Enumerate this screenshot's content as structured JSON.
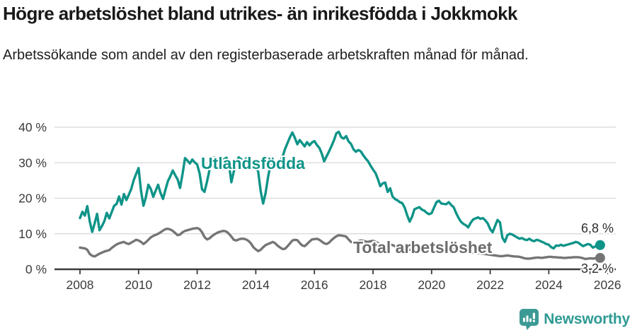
{
  "header": {
    "title": "Högre arbetslöshet bland utrikes- än inrikesfödda i Jokkmokk",
    "subtitle": "Arbetssökande som andel av den registerbaserade arbetskraften månad för månad."
  },
  "chart_data": {
    "type": "line",
    "unit": "%",
    "x_start_year": 2008,
    "x_interval": "monthly",
    "x_ticks": [
      2008,
      2010,
      2012,
      2014,
      2016,
      2018,
      2020,
      2022,
      2024,
      2026
    ],
    "y_ticks": [
      0,
      10,
      20,
      30,
      40
    ],
    "y_tick_suffix": " %",
    "ylim": [
      0,
      42
    ],
    "grid": "horizontal",
    "colors": {
      "utlandsfodda": "#0E9488",
      "total": "#757575",
      "axis": "#3b3b3b",
      "gridline": "#d8d8d8"
    },
    "series": [
      {
        "name": "Utlandsfödda",
        "color": "#0E9488",
        "end_label": "6,8 %",
        "end_value": 6.8,
        "values": [
          14.4,
          16.2,
          15.1,
          17.8,
          13.5,
          10.5,
          12.9,
          15.6,
          11.0,
          12.2,
          13.6,
          15.9,
          14.3,
          16.1,
          17.9,
          18.4,
          20.5,
          18.2,
          21.2,
          19.5,
          21.0,
          22.6,
          25.1,
          26.8,
          28.5,
          22.0,
          17.9,
          20.3,
          23.8,
          22.6,
          20.4,
          22.1,
          23.8,
          21.5,
          19.8,
          22.4,
          24.8,
          26.2,
          27.8,
          26.5,
          25.3,
          22.9,
          26.8,
          31.3,
          30.6,
          29.8,
          30.9,
          30.1,
          29.5,
          27.0,
          22.5,
          21.8,
          24.6,
          27.9,
          30.4,
          31.5,
          30.8,
          31.2,
          30.5,
          31.0,
          31.4,
          29.8,
          24.5,
          27.6,
          30.2,
          31.5,
          31.0,
          30.4,
          31.2,
          29.6,
          28.8,
          29.4,
          29.0,
          27.5,
          22.0,
          18.5,
          21.4,
          25.8,
          29.5,
          31.0,
          30.2,
          29.6,
          30.4,
          31.8,
          33.9,
          35.6,
          37.2,
          38.5,
          37.0,
          35.2,
          36.4,
          35.5,
          34.6,
          35.8,
          34.9,
          35.7,
          36.1,
          35.0,
          34.2,
          32.6,
          30.4,
          31.8,
          33.2,
          34.7,
          36.3,
          38.3,
          38.7,
          37.2,
          36.8,
          37.5,
          36.0,
          35.3,
          33.8,
          33.1,
          33.6,
          33.2,
          32.1,
          31.2,
          30.4,
          29.2,
          28.1,
          27.1,
          25.4,
          23.4,
          24.2,
          24.4,
          21.8,
          22.8,
          20.5,
          19.8,
          19.4,
          18.9,
          18.6,
          17.3,
          15.2,
          13.4,
          14.8,
          16.9,
          17.2,
          17.5,
          16.8,
          16.5,
          15.9,
          15.5,
          15.8,
          17.4,
          18.9,
          19.3,
          18.5,
          18.4,
          18.3,
          18.9,
          18.1,
          17.5,
          15.9,
          14.5,
          13.4,
          12.8,
          12.4,
          11.8,
          13.1,
          14.0,
          14.3,
          14.6,
          14.2,
          14.4,
          13.8,
          12.9,
          11.3,
          10.4,
          12.2,
          13.9,
          13.2,
          8.9,
          7.7,
          9.6,
          10.0,
          9.8,
          9.4,
          9.0,
          8.6,
          8.8,
          8.4,
          8.2,
          8.6,
          8.1,
          7.9,
          8.3,
          8.1,
          7.8,
          7.5,
          7.1,
          6.9,
          6.2,
          5.9,
          6.7,
          6.6,
          6.9,
          6.6,
          6.8,
          7.0,
          7.2,
          7.4,
          7.7,
          7.5,
          7.0,
          6.5,
          6.8,
          7.1,
          6.9,
          6.1,
          6.4,
          6.6,
          6.8
        ]
      },
      {
        "name": "Total arbetslöshet",
        "color": "#757575",
        "end_label": "3,2 %",
        "end_value": 3.2,
        "values": [
          6.1,
          6.0,
          5.9,
          5.5,
          4.3,
          3.8,
          3.6,
          4.0,
          4.4,
          4.7,
          5.0,
          5.2,
          5.4,
          6.0,
          6.5,
          7.0,
          7.3,
          7.5,
          7.7,
          7.3,
          7.1,
          7.5,
          7.9,
          8.3,
          8.1,
          7.7,
          7.1,
          7.6,
          8.3,
          9.0,
          9.4,
          9.7,
          10.0,
          10.4,
          10.9,
          11.3,
          11.4,
          11.2,
          10.8,
          10.2,
          9.6,
          9.8,
          10.4,
          10.8,
          11.0,
          11.2,
          11.4,
          11.5,
          11.6,
          11.3,
          10.4,
          9.1,
          8.4,
          8.7,
          9.3,
          9.8,
          10.2,
          10.5,
          10.7,
          10.8,
          10.6,
          10.0,
          9.2,
          8.3,
          8.1,
          8.4,
          8.6,
          8.6,
          8.4,
          8.0,
          7.3,
          6.2,
          5.6,
          5.1,
          5.5,
          6.2,
          6.8,
          7.1,
          7.4,
          7.7,
          7.3,
          6.6,
          6.1,
          5.7,
          5.8,
          6.5,
          7.3,
          8.1,
          8.3,
          8.2,
          7.4,
          6.7,
          6.5,
          7.1,
          7.8,
          8.4,
          8.5,
          8.6,
          8.3,
          7.8,
          7.3,
          7.1,
          7.5,
          8.2,
          8.8,
          9.3,
          9.6,
          9.5,
          9.4,
          9.2,
          8.4,
          7.7,
          7.5,
          7.6,
          7.9,
          8.1,
          8.0,
          7.8,
          7.7,
          7.9,
          8.0,
          7.8,
          7.4,
          7.0,
          6.8,
          6.7,
          6.9,
          7.0,
          6.8,
          6.5,
          6.3,
          6.2,
          6.1,
          5.9,
          5.7,
          5.5,
          5.4,
          5.5,
          5.7,
          5.8,
          5.7,
          5.6,
          5.5,
          5.6,
          5.8,
          6.1,
          6.5,
          6.8,
          6.7,
          6.6,
          6.5,
          6.4,
          6.2,
          6.0,
          5.8,
          5.6,
          5.4,
          5.2,
          5.0,
          4.8,
          4.7,
          4.6,
          4.6,
          4.5,
          4.5,
          4.4,
          4.3,
          4.2,
          4.1,
          4.0,
          3.9,
          3.8,
          3.7,
          3.7,
          3.8,
          3.9,
          3.8,
          3.7,
          3.6,
          3.6,
          3.5,
          3.3,
          3.1,
          3.0,
          3.0,
          3.1,
          3.2,
          3.3,
          3.3,
          3.2,
          3.3,
          3.4,
          3.5,
          3.5,
          3.4,
          3.4,
          3.3,
          3.3,
          3.2,
          3.2,
          3.3,
          3.3,
          3.4,
          3.4,
          3.4,
          3.3,
          3.1,
          2.9,
          3.0,
          3.1,
          3.0,
          3.1,
          3.1,
          3.2
        ]
      }
    ]
  },
  "footer": {
    "brand": "Newsworthy",
    "logo_icon": "newsworthy-bubble-chart-icon",
    "brand_color": "#2F9A94"
  }
}
